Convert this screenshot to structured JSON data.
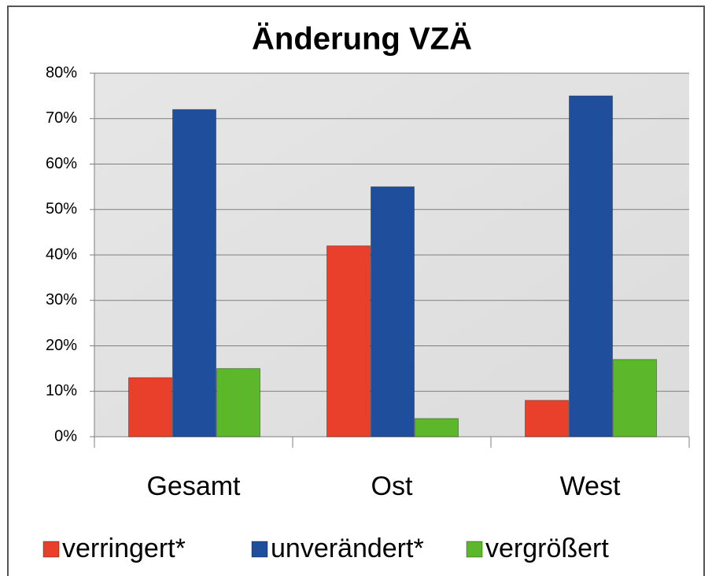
{
  "chart_data": {
    "type": "bar",
    "title": "Änderung VZÄ",
    "categories": [
      "Gesamt",
      "Ost",
      "West"
    ],
    "series": [
      {
        "name": "verringert*",
        "color": "#e8402a",
        "values": [
          13,
          42,
          8
        ]
      },
      {
        "name": "unverändert*",
        "color": "#1f4e9c",
        "values": [
          72,
          55,
          75
        ]
      },
      {
        "name": "vergrößert",
        "color": "#5cb82a",
        "values": [
          15,
          4,
          17
        ]
      }
    ],
    "ylim": [
      0,
      80
    ],
    "yticks": [
      {
        "value": 0,
        "label": "0%"
      },
      {
        "value": 10,
        "label": "10%"
      },
      {
        "value": 20,
        "label": "20%"
      },
      {
        "value": 30,
        "label": "30%"
      },
      {
        "value": 40,
        "label": "40%"
      },
      {
        "value": 50,
        "label": "50%"
      },
      {
        "value": 60,
        "label": "60%"
      },
      {
        "value": 70,
        "label": "70%"
      },
      {
        "value": 80,
        "label": "80%"
      }
    ],
    "grid": true,
    "legend": "bottom"
  }
}
